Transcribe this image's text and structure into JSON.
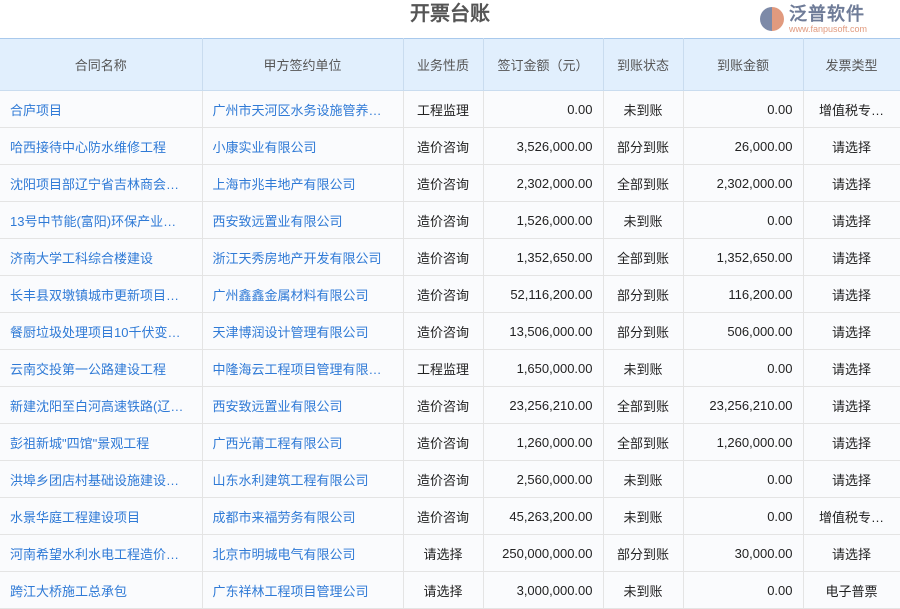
{
  "title": "开票台账",
  "columns": [
    "合同名称",
    "甲方签约单位",
    "业务性质",
    "签订金额（元）",
    "到账状态",
    "到账金额",
    "发票类型"
  ],
  "rows": [
    [
      "合庐项目",
      "广州市天河区水务设施管养…",
      "工程监理",
      "0.00",
      "未到账",
      "0.00",
      "增值税专…"
    ],
    [
      "哈西接待中心防水维修工程",
      "小康实业有限公司",
      "造价咨询",
      "3,526,000.00",
      "部分到账",
      "26,000.00",
      "请选择"
    ],
    [
      "沈阳项目部辽宁省吉林商会…",
      "上海市兆丰地产有限公司",
      "造价咨询",
      "2,302,000.00",
      "全部到账",
      "2,302,000.00",
      "请选择"
    ],
    [
      "13号中节能(富阳)环保产业…",
      "西安致远置业有限公司",
      "造价咨询",
      "1,526,000.00",
      "未到账",
      "0.00",
      "请选择"
    ],
    [
      "济南大学工科综合楼建设",
      "浙江天秀房地产开发有限公司",
      "造价咨询",
      "1,352,650.00",
      "全部到账",
      "1,352,650.00",
      "请选择"
    ],
    [
      "长丰县双墩镇城市更新项目…",
      "广州鑫鑫金属材料有限公司",
      "造价咨询",
      "52,116,200.00",
      "部分到账",
      "116,200.00",
      "请选择"
    ],
    [
      "餐厨垃圾处理项目10千伏变…",
      "天津博润设计管理有限公司",
      "造价咨询",
      "13,506,000.00",
      "部分到账",
      "506,000.00",
      "请选择"
    ],
    [
      "云南交投第一公路建设工程",
      "中隆海云工程项目管理有限…",
      "工程监理",
      "1,650,000.00",
      "未到账",
      "0.00",
      "请选择"
    ],
    [
      "新建沈阳至白河高速铁路(辽…",
      "西安致远置业有限公司",
      "造价咨询",
      "23,256,210.00",
      "全部到账",
      "23,256,210.00",
      "请选择"
    ],
    [
      "彭祖新城\"四馆\"景观工程",
      "广西光莆工程有限公司",
      "造价咨询",
      "1,260,000.00",
      "全部到账",
      "1,260,000.00",
      "请选择"
    ],
    [
      "洪埠乡团店村基础设施建设…",
      "山东水利建筑工程有限公司",
      "造价咨询",
      "2,560,000.00",
      "未到账",
      "0.00",
      "请选择"
    ],
    [
      "水景华庭工程建设项目",
      "成都市来福劳务有限公司",
      "造价咨询",
      "45,263,200.00",
      "未到账",
      "0.00",
      "增值税专…"
    ],
    [
      "河南希望水利水电工程造价…",
      "北京市明城电气有限公司",
      "请选择",
      "250,000,000.00",
      "部分到账",
      "30,000.00",
      "请选择"
    ],
    [
      "跨江大桥施工总承包",
      "广东祥林工程项目管理公司",
      "请选择",
      "3,000,000.00",
      "未到账",
      "0.00",
      "电子普票"
    ]
  ],
  "watermark": {
    "name": "泛普软件",
    "url": "www.fanpusoft.com"
  }
}
